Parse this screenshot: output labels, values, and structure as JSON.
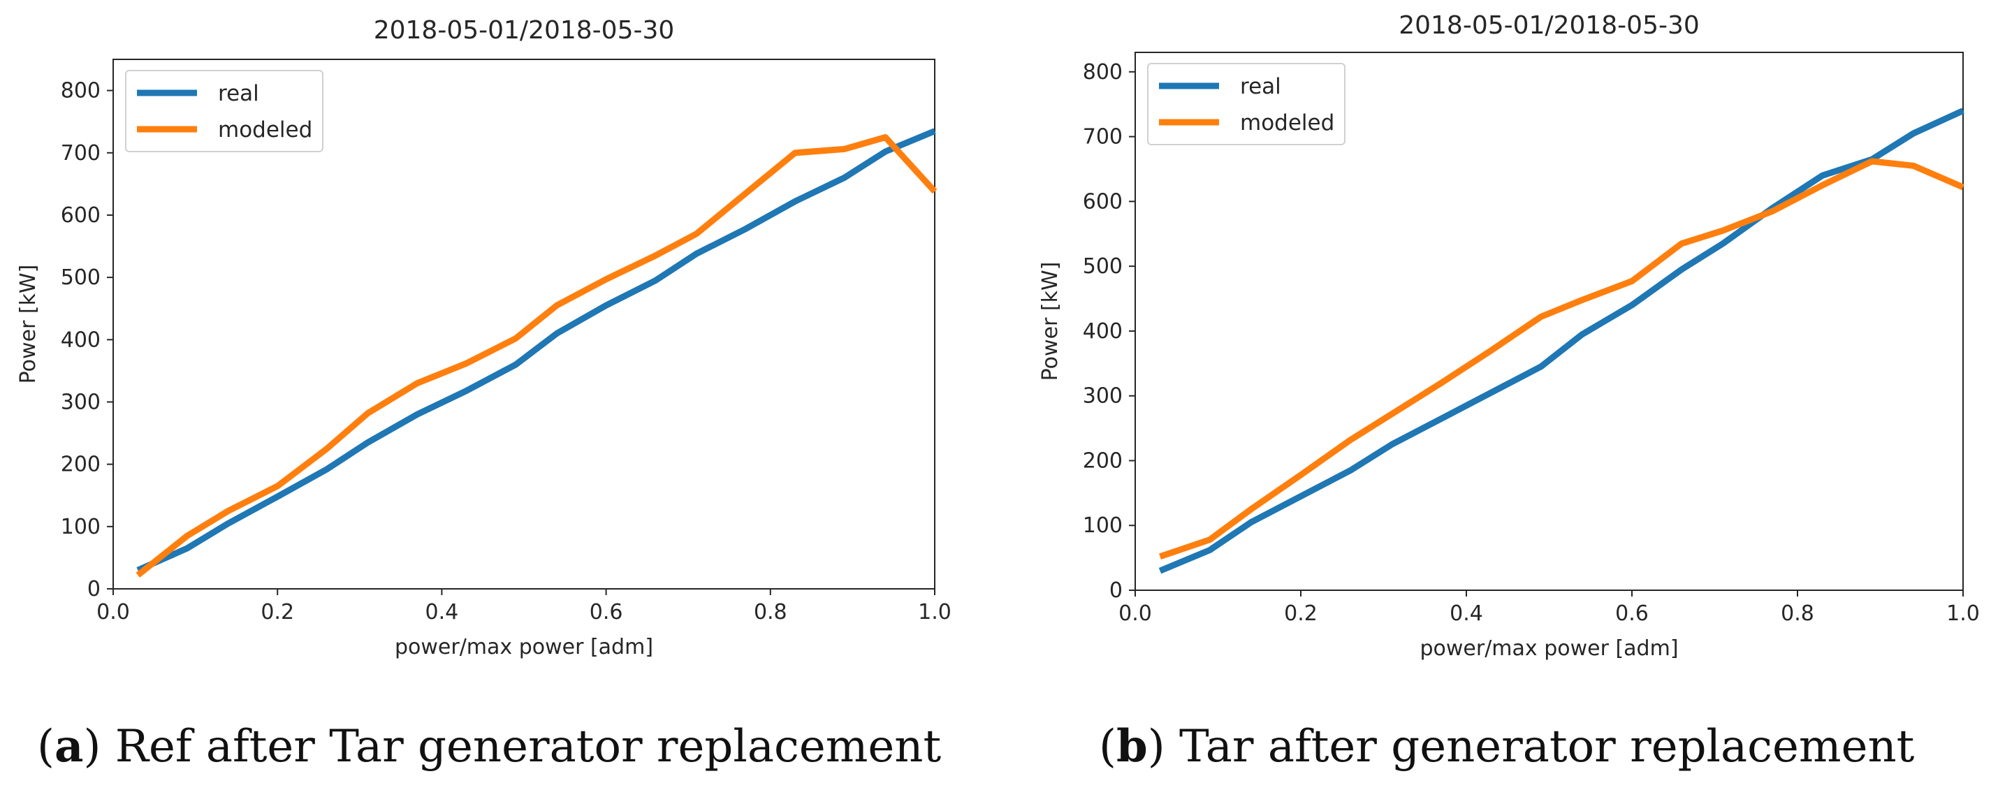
{
  "chart_data": [
    {
      "type": "line",
      "panel": "a",
      "title": "2018-05-01/2018-05-30",
      "xlabel": "power/max power [adm]",
      "ylabel": "Power [kW]",
      "xlim": [
        0.0,
        1.0
      ],
      "ylim": [
        0,
        850
      ],
      "xticks": [
        0.0,
        0.2,
        0.4,
        0.6,
        0.8,
        1.0
      ],
      "xtick_labels": [
        "0.0",
        "0.2",
        "0.4",
        "0.6",
        "0.8",
        "1.0"
      ],
      "yticks": [
        0,
        100,
        200,
        300,
        400,
        500,
        600,
        700,
        800
      ],
      "ytick_labels": [
        "0",
        "100",
        "200",
        "300",
        "400",
        "500",
        "600",
        "700",
        "800"
      ],
      "legend_position": "top-left",
      "grid": false,
      "series": [
        {
          "name": "real",
          "color": "#1f77b4",
          "x": [
            0.03,
            0.09,
            0.14,
            0.2,
            0.26,
            0.31,
            0.37,
            0.43,
            0.49,
            0.54,
            0.6,
            0.66,
            0.71,
            0.77,
            0.83,
            0.89,
            0.94,
            1.0
          ],
          "y": [
            30,
            65,
            105,
            148,
            192,
            235,
            280,
            318,
            360,
            410,
            455,
            495,
            538,
            578,
            622,
            660,
            702,
            735
          ]
        },
        {
          "name": "modeled",
          "color": "#ff7f0e",
          "x": [
            0.03,
            0.09,
            0.14,
            0.2,
            0.26,
            0.31,
            0.37,
            0.43,
            0.49,
            0.54,
            0.6,
            0.66,
            0.71,
            0.77,
            0.83,
            0.89,
            0.94,
            1.0
          ],
          "y": [
            22,
            85,
            125,
            165,
            225,
            282,
            330,
            362,
            402,
            455,
            497,
            535,
            570,
            635,
            700,
            706,
            725,
            638
          ]
        }
      ],
      "caption_label": "a",
      "caption": " Ref after Tar generator replacement"
    },
    {
      "type": "line",
      "panel": "b",
      "title": "2018-05-01/2018-05-30",
      "xlabel": "power/max power [adm]",
      "ylabel": "Power [kW]",
      "xlim": [
        0.0,
        1.0
      ],
      "ylim": [
        0,
        830
      ],
      "xticks": [
        0.0,
        0.2,
        0.4,
        0.6,
        0.8,
        1.0
      ],
      "xtick_labels": [
        "0.0",
        "0.2",
        "0.4",
        "0.6",
        "0.8",
        "1.0"
      ],
      "yticks": [
        0,
        100,
        200,
        300,
        400,
        500,
        600,
        700,
        800
      ],
      "ytick_labels": [
        "0",
        "100",
        "200",
        "300",
        "400",
        "500",
        "600",
        "700",
        "800"
      ],
      "legend_position": "top-left",
      "grid": false,
      "series": [
        {
          "name": "real",
          "color": "#1f77b4",
          "x": [
            0.03,
            0.09,
            0.14,
            0.2,
            0.26,
            0.31,
            0.37,
            0.43,
            0.49,
            0.54,
            0.6,
            0.66,
            0.71,
            0.77,
            0.83,
            0.89,
            0.94,
            1.0
          ],
          "y": [
            30,
            62,
            105,
            145,
            185,
            225,
            265,
            305,
            345,
            395,
            440,
            495,
            535,
            590,
            640,
            665,
            705,
            740
          ]
        },
        {
          "name": "modeled",
          "color": "#ff7f0e",
          "x": [
            0.03,
            0.09,
            0.14,
            0.2,
            0.26,
            0.31,
            0.37,
            0.43,
            0.49,
            0.54,
            0.6,
            0.66,
            0.71,
            0.77,
            0.83,
            0.89,
            0.94,
            1.0
          ],
          "y": [
            52,
            78,
            125,
            178,
            232,
            272,
            320,
            370,
            422,
            448,
            477,
            535,
            555,
            585,
            625,
            662,
            655,
            622
          ]
        }
      ],
      "caption_label": "b",
      "caption": " Tar after generator replacement"
    }
  ]
}
